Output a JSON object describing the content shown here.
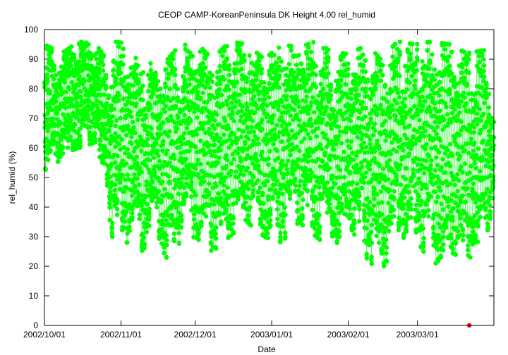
{
  "chart_data": {
    "type": "scatter",
    "title": "CEOP CAMP-KoreanPeninsula DK Height 4.00 rel_humid",
    "xlabel": "Date",
    "ylabel": "rel_humid (%)",
    "x_range": [
      "2002-10-01",
      "2003-03-31"
    ],
    "ylim": [
      0,
      100
    ],
    "yticks": [
      0,
      10,
      20,
      30,
      40,
      50,
      60,
      70,
      80,
      90,
      100
    ],
    "xticks": [
      {
        "date": "2002-10-01",
        "label": "2002/10/01"
      },
      {
        "date": "2002-11-01",
        "label": "2002/11/01"
      },
      {
        "date": "2002-12-01",
        "label": "2002/12/01"
      },
      {
        "date": "2003-01-01",
        "label": "2003/01/01"
      },
      {
        "date": "2003-02-01",
        "label": "2003/02/01"
      },
      {
        "date": "2003-03-01",
        "label": "2003/03/01"
      }
    ],
    "grid": false,
    "legend": "none",
    "series": [
      {
        "color": "#00ff00",
        "marker": "circle",
        "connected": true,
        "sampling": "hourly, diurnal cycle",
        "envelope": [
          {
            "date": "2002-10-01",
            "min": 46,
            "max": 95
          },
          {
            "date": "2002-10-08",
            "min": 58,
            "max": 92
          },
          {
            "date": "2002-10-15",
            "min": 60,
            "max": 96
          },
          {
            "date": "2002-10-22",
            "min": 62,
            "max": 95
          },
          {
            "date": "2002-10-26",
            "min": 40,
            "max": 90
          },
          {
            "date": "2002-10-29",
            "min": 28,
            "max": 96
          },
          {
            "date": "2002-11-05",
            "min": 28,
            "max": 95
          },
          {
            "date": "2002-11-08",
            "min": 24,
            "max": 90
          },
          {
            "date": "2002-11-15",
            "min": 30,
            "max": 88
          },
          {
            "date": "2002-11-20",
            "min": 22,
            "max": 90
          },
          {
            "date": "2002-11-25",
            "min": 28,
            "max": 95
          },
          {
            "date": "2002-12-01",
            "min": 30,
            "max": 96
          },
          {
            "date": "2002-12-08",
            "min": 25,
            "max": 90
          },
          {
            "date": "2002-12-15",
            "min": 30,
            "max": 96
          },
          {
            "date": "2002-12-22",
            "min": 35,
            "max": 95
          },
          {
            "date": "2002-12-29",
            "min": 30,
            "max": 90
          },
          {
            "date": "2003-01-05",
            "min": 28,
            "max": 95
          },
          {
            "date": "2003-01-12",
            "min": 35,
            "max": 94
          },
          {
            "date": "2003-01-19",
            "min": 30,
            "max": 96
          },
          {
            "date": "2003-01-26",
            "min": 25,
            "max": 92
          },
          {
            "date": "2003-02-02",
            "min": 33,
            "max": 92
          },
          {
            "date": "2003-02-09",
            "min": 22,
            "max": 95
          },
          {
            "date": "2003-02-14",
            "min": 18,
            "max": 90
          },
          {
            "date": "2003-02-21",
            "min": 28,
            "max": 96
          },
          {
            "date": "2003-02-28",
            "min": 30,
            "max": 95
          },
          {
            "date": "2003-03-07",
            "min": 20,
            "max": 96
          },
          {
            "date": "2003-03-14",
            "min": 25,
            "max": 95
          },
          {
            "date": "2003-03-21",
            "min": 22,
            "max": 92
          },
          {
            "date": "2003-03-28",
            "min": 27,
            "max": 93
          },
          {
            "date": "2003-03-31",
            "min": 38,
            "max": 78
          }
        ]
      },
      {
        "color": "#ff0000",
        "marker": "circle",
        "points": [
          {
            "date": "2003-03-22",
            "value": 0
          }
        ]
      }
    ]
  }
}
